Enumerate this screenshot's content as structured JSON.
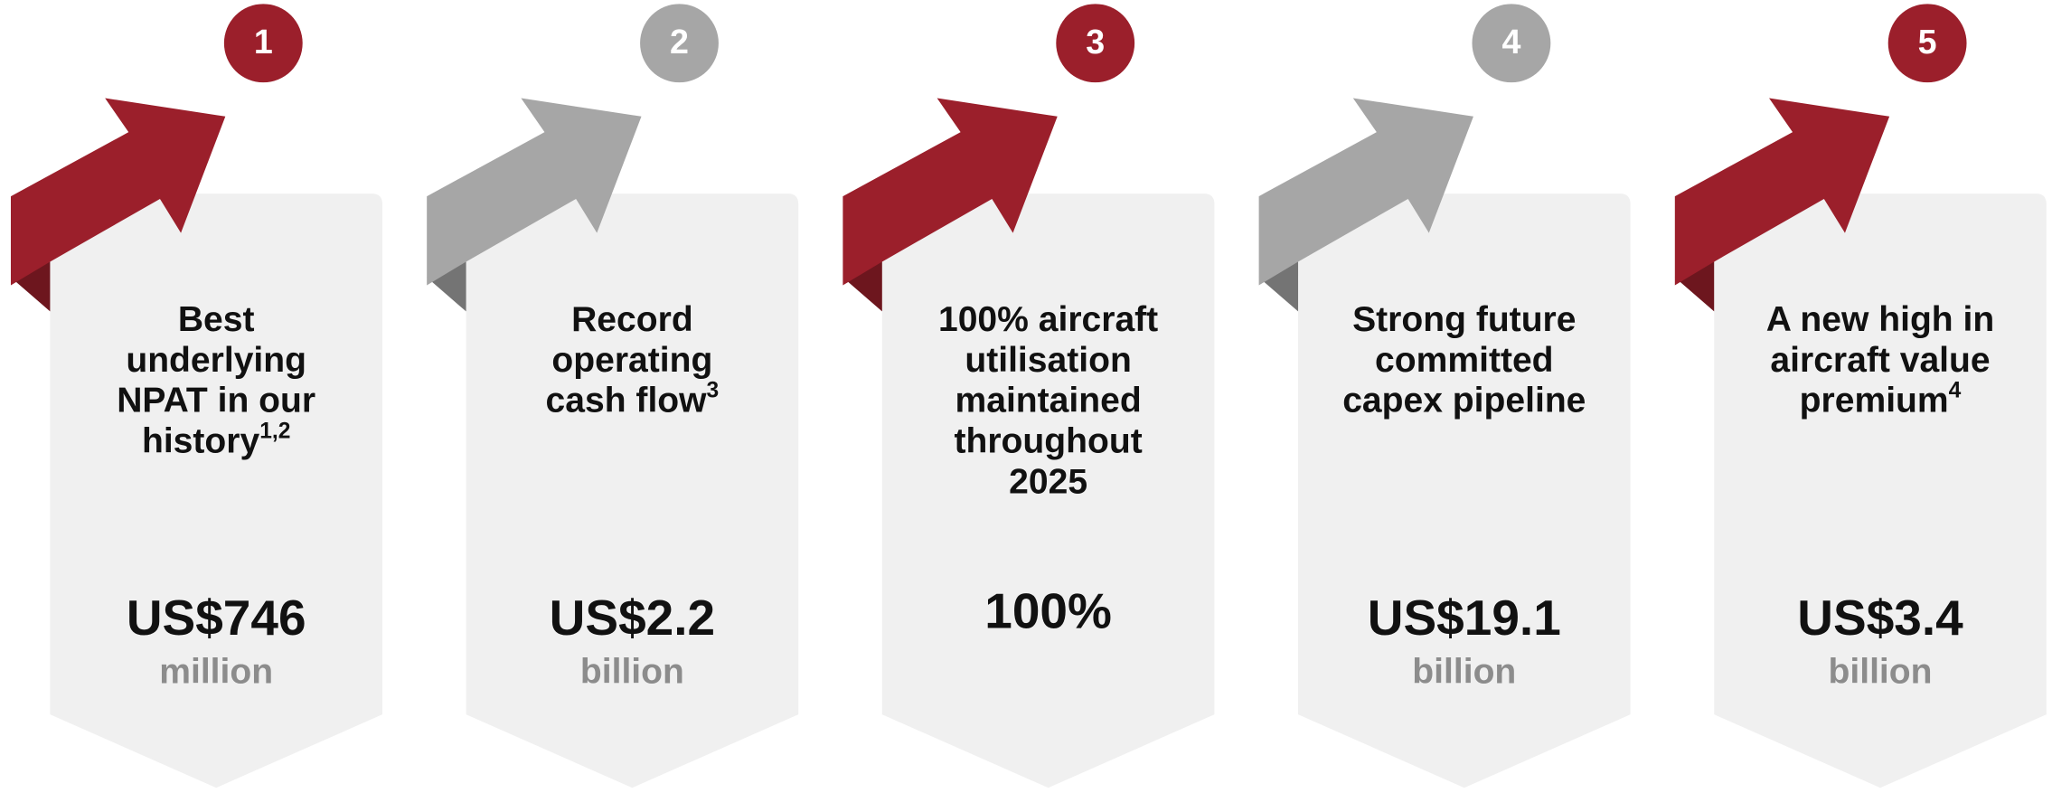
{
  "cards": [
    {
      "number": "1",
      "color": "#9b1f2b",
      "title": [
        "Best",
        "underlying",
        "NPAT in our",
        "history"
      ],
      "sup": "1,2",
      "value": "US$746",
      "unit": "million"
    },
    {
      "number": "2",
      "color": "#a6a6a6",
      "title": [
        "Record",
        "operating",
        "cash flow"
      ],
      "sup": "3",
      "value": "US$2.2",
      "unit": "billion"
    },
    {
      "number": "3",
      "color": "#9b1f2b",
      "title": [
        "100% aircraft",
        "utilisation",
        "maintained",
        "throughout",
        "2025"
      ],
      "value": "100%"
    },
    {
      "number": "4",
      "color": "#a6a6a6",
      "title": [
        "Strong future",
        "committed",
        "capex pipeline"
      ],
      "value": "US$19.1",
      "unit": "billion"
    },
    {
      "number": "5",
      "color": "#9b1f2b",
      "title": [
        "A new high in",
        "aircraft value",
        "premium"
      ],
      "sup": "4",
      "value": "US$3.4",
      "unit": "billion"
    }
  ]
}
